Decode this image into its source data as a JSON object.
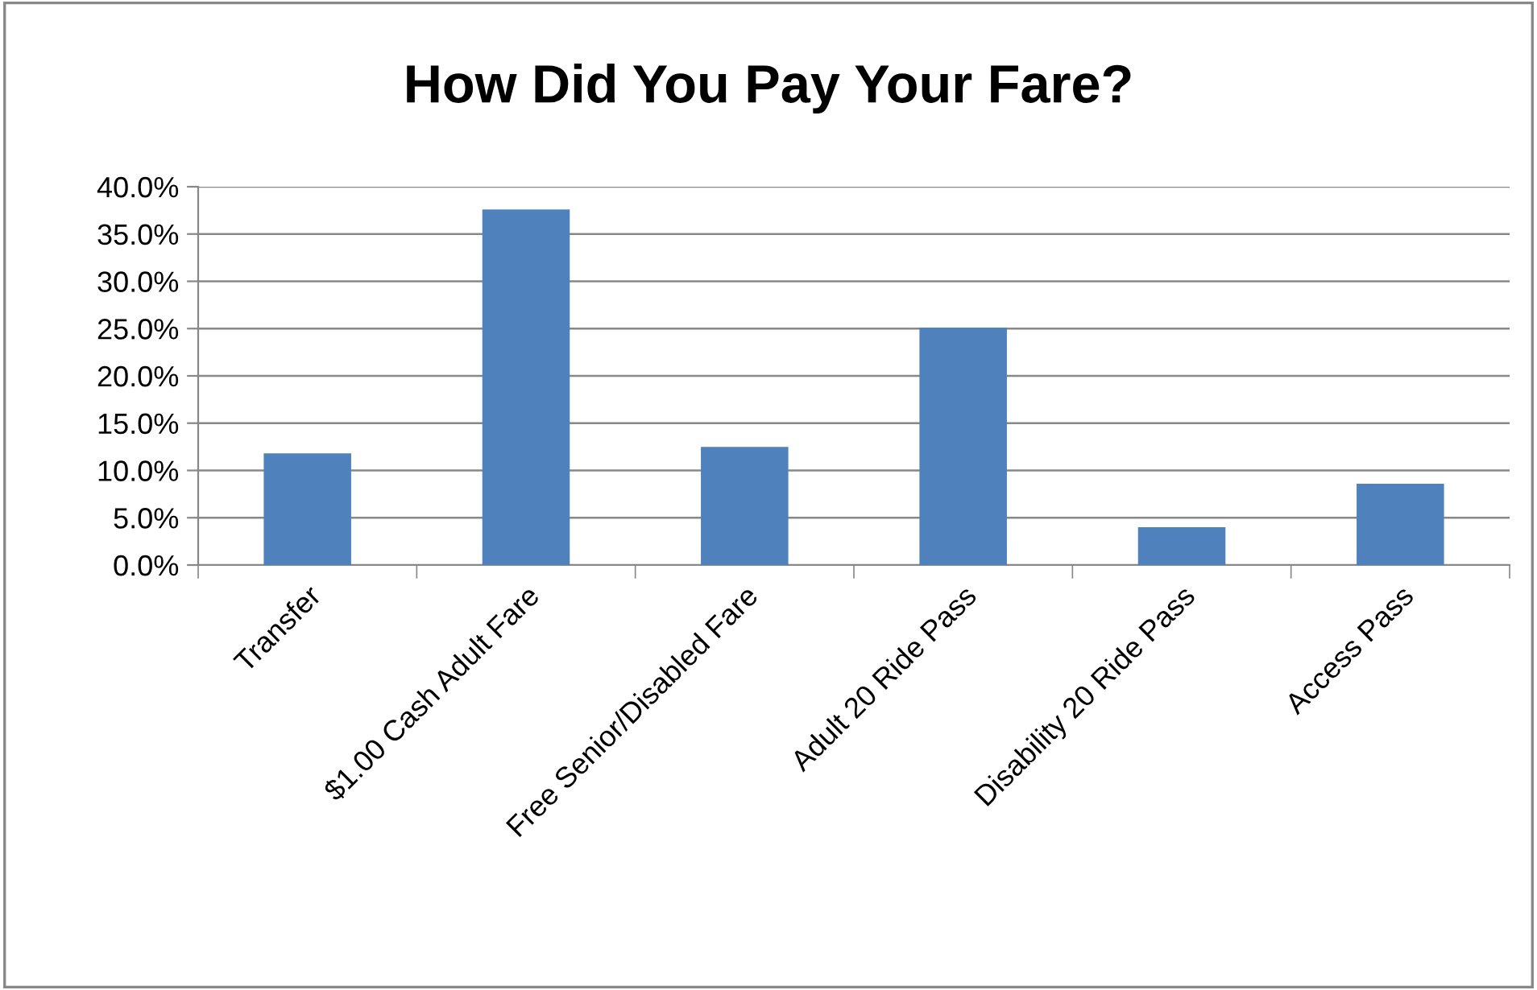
{
  "chart_data": {
    "type": "bar",
    "title": "How Did You Pay Your Fare?",
    "categories": [
      "Transfer",
      "$1.00 Cash Adult Fare",
      "Free Senior/Disabled Fare",
      "Adult 20 Ride Pass",
      "Disability 20 Ride Pass",
      "Access Pass"
    ],
    "values": [
      11.8,
      37.6,
      12.5,
      25.1,
      4.0,
      8.6
    ],
    "color": "#4f81bd",
    "ylim": [
      0,
      40
    ],
    "yticks": [
      {
        "value": 0,
        "label": "0.0%"
      },
      {
        "value": 5,
        "label": "5.0%"
      },
      {
        "value": 10,
        "label": "10.0%"
      },
      {
        "value": 15,
        "label": "15.0%"
      },
      {
        "value": 20,
        "label": "20.0%"
      },
      {
        "value": 25,
        "label": "25.0%"
      },
      {
        "value": 30,
        "label": "30.0%"
      },
      {
        "value": 35,
        "label": "35.0%"
      },
      {
        "value": 40,
        "label": "40.0%"
      }
    ],
    "grid": "y"
  }
}
